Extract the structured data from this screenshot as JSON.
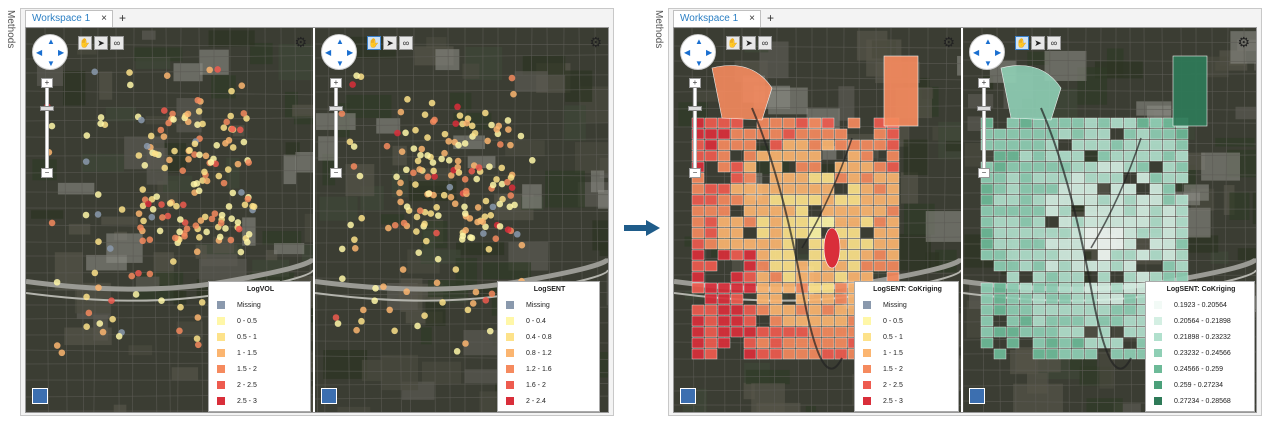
{
  "methods_label": "Methods",
  "before": {
    "tab_label": "Workspace 1",
    "close_glyph": "×",
    "add_glyph": "+",
    "views": [
      {
        "legend_title": "LogVOL",
        "legend": [
          {
            "label": "Missing",
            "color": "#8a99ad"
          },
          {
            "label": "0 - 0.5",
            "color": "#fff7a8"
          },
          {
            "label": "0.5 - 1",
            "color": "#fde28a"
          },
          {
            "label": "1 - 1.5",
            "color": "#fbb570"
          },
          {
            "label": "1.5 - 2",
            "color": "#f58a5e"
          },
          {
            "label": "2 - 2.5",
            "color": "#ee5b4f"
          },
          {
            "label": "2.5 - 3",
            "color": "#d92e3a"
          }
        ]
      },
      {
        "legend_title": "LogSENT",
        "legend": [
          {
            "label": "Missing",
            "color": "#8a99ad"
          },
          {
            "label": "0 - 0.4",
            "color": "#fff7a8"
          },
          {
            "label": "0.4 - 0.8",
            "color": "#fde28a"
          },
          {
            "label": "0.8 - 1.2",
            "color": "#fbb570"
          },
          {
            "label": "1.2 - 1.6",
            "color": "#f58a5e"
          },
          {
            "label": "1.6 - 2",
            "color": "#ee5b4f"
          },
          {
            "label": "2 - 2.4",
            "color": "#d92e3a"
          }
        ]
      }
    ]
  },
  "after": {
    "tab_label": "Workspace 1",
    "close_glyph": "×",
    "add_glyph": "+",
    "views": [
      {
        "legend_title": "LogSENT: CoKriging",
        "legend": [
          {
            "label": "Missing",
            "color": "#8a99ad"
          },
          {
            "label": "0 - 0.5",
            "color": "#fff7a8"
          },
          {
            "label": "0.5 - 1",
            "color": "#fde28a"
          },
          {
            "label": "1 - 1.5",
            "color": "#fbb570"
          },
          {
            "label": "1.5 - 2",
            "color": "#f58a5e"
          },
          {
            "label": "2 - 2.5",
            "color": "#ee5b4f"
          },
          {
            "label": "2.5 - 3",
            "color": "#d92e3a"
          }
        ]
      },
      {
        "legend_title": "LogSENT: CoKriging",
        "legend": [
          {
            "label": "0.1923 - 0.20564",
            "color": "#f2faf6"
          },
          {
            "label": "0.20564 - 0.21898",
            "color": "#d4efe3"
          },
          {
            "label": "0.21898 - 0.23232",
            "color": "#b1e0cd"
          },
          {
            "label": "0.23232 - 0.24566",
            "color": "#8fcfb5"
          },
          {
            "label": "0.24566 - 0.259",
            "color": "#6dba98"
          },
          {
            "label": "0.259 - 0.27234",
            "color": "#4ba07a"
          },
          {
            "label": "0.27234 - 0.28568",
            "color": "#2e7a58"
          }
        ]
      }
    ]
  },
  "icons": {
    "pan_up": "▲",
    "pan_down": "▼",
    "pan_left": "◀",
    "pan_right": "▶",
    "zoom_in": "+",
    "zoom_out": "−",
    "tool_hand": "✋",
    "tool_pointer": "➤",
    "tool_binoculars": "∞",
    "gear": "⚙"
  },
  "colors": {
    "arrow": "#1f5c8a",
    "tab_text": "#2b7fc4"
  }
}
